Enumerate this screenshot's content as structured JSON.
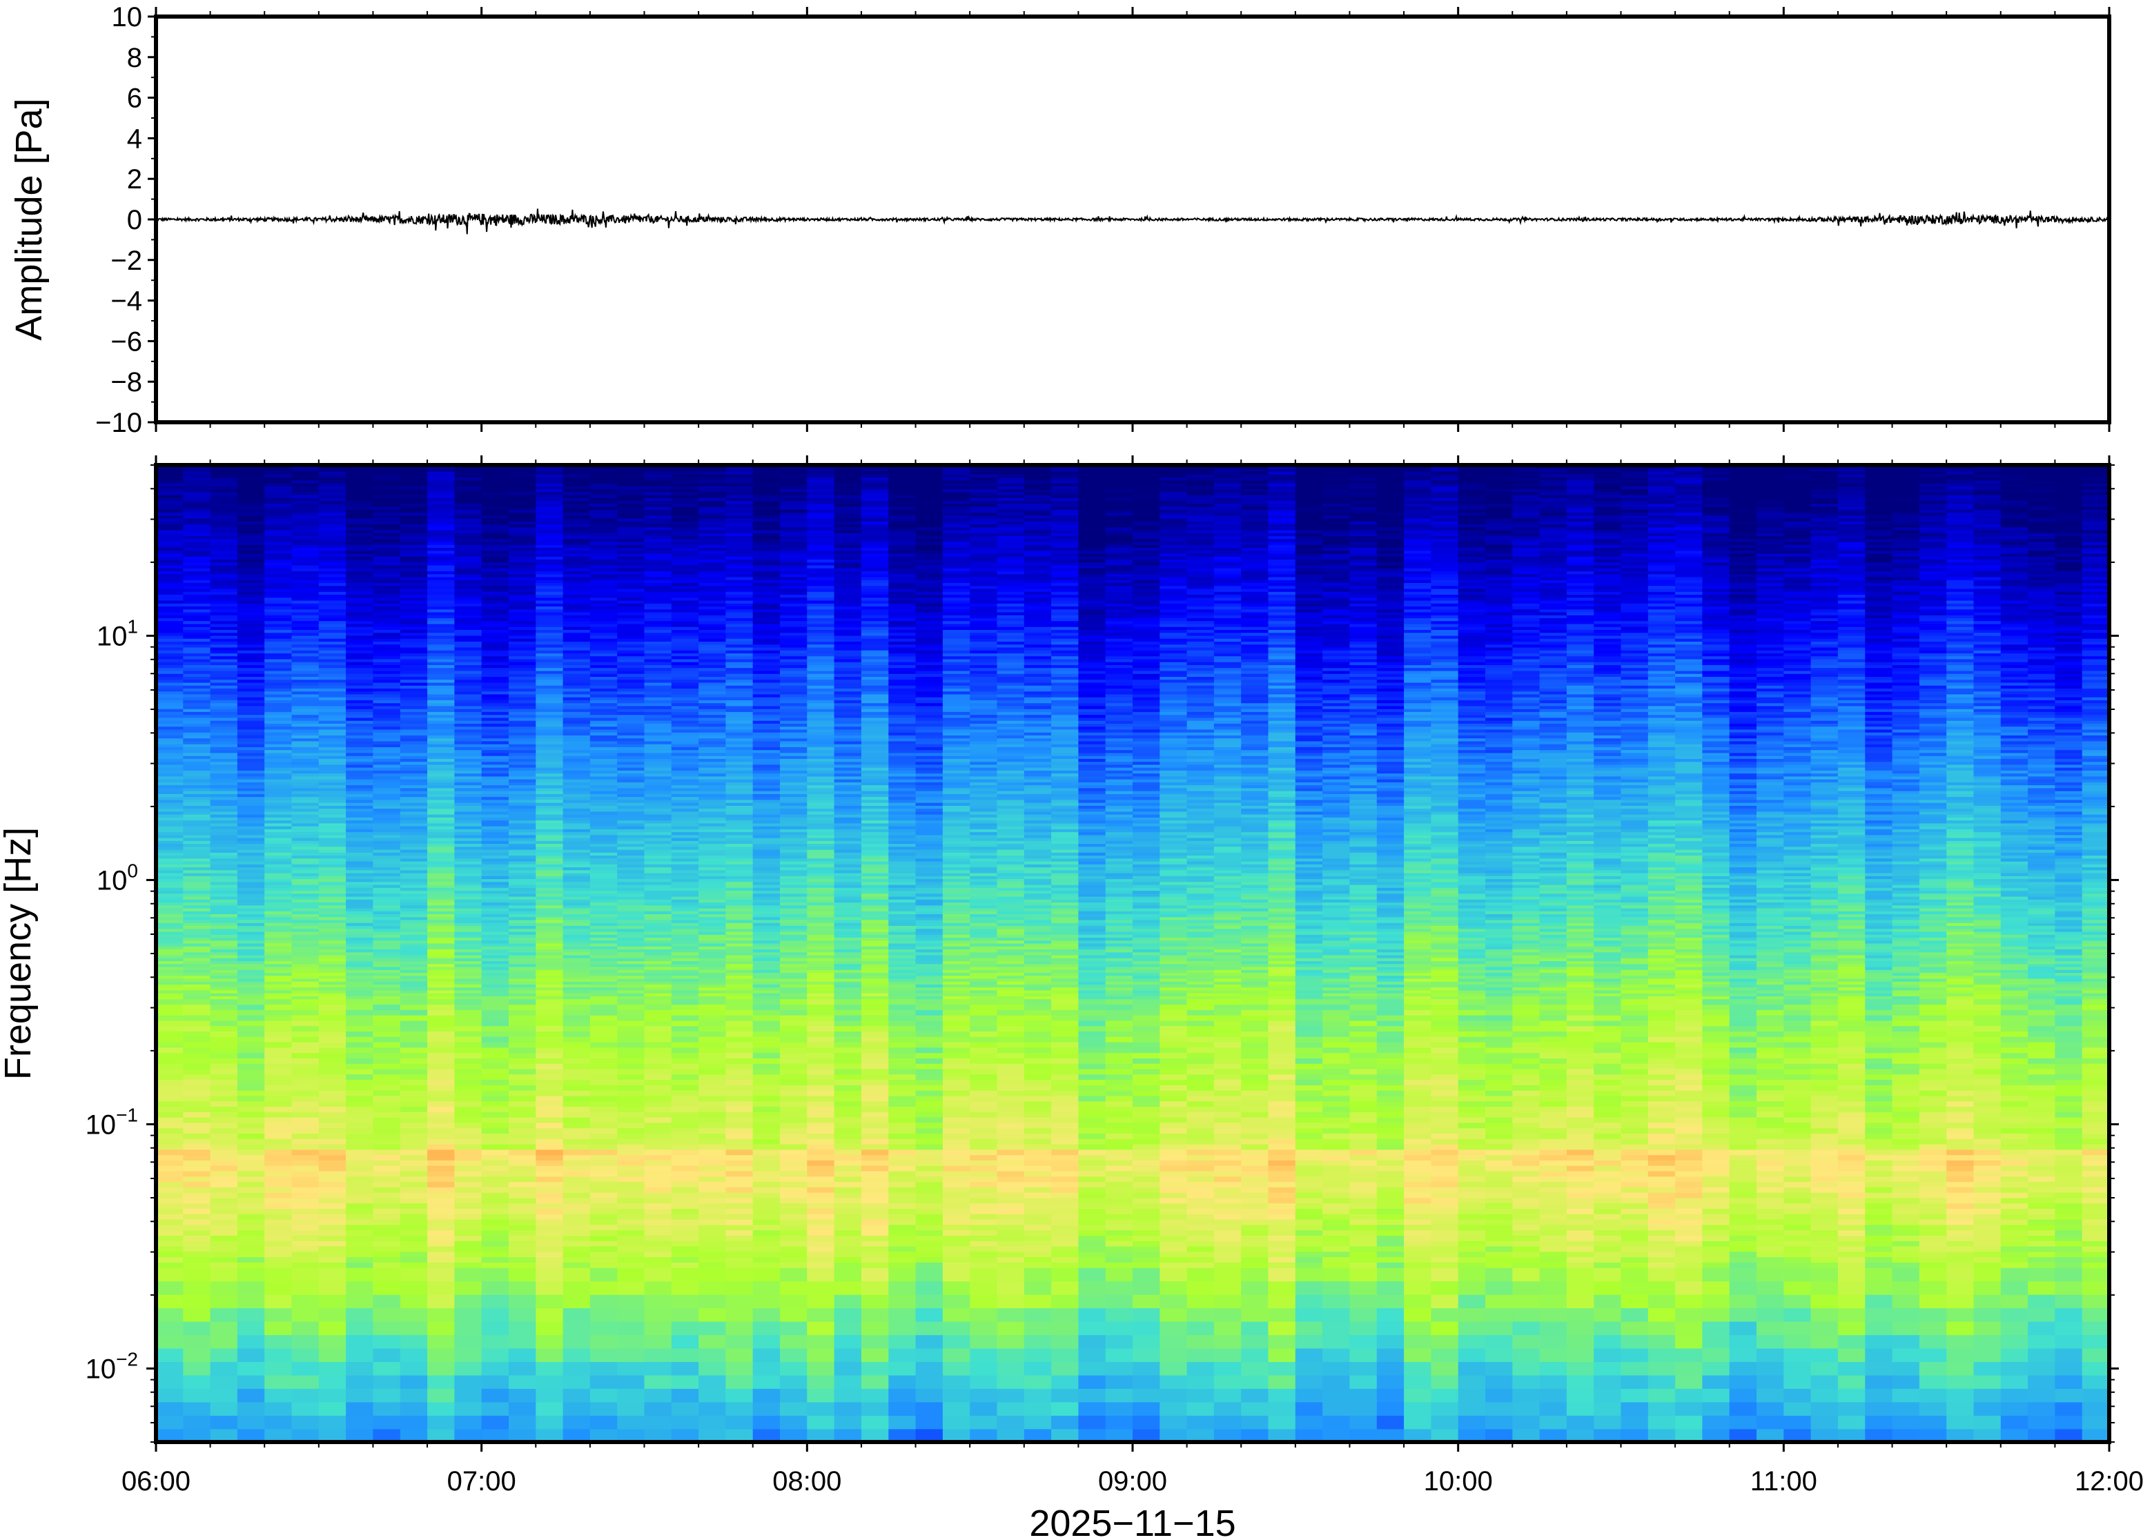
{
  "chart_data": [
    {
      "type": "line",
      "panel": "waveform",
      "title": "",
      "xlabel": "",
      "ylabel": "Amplitude [Pa]",
      "ylim": [
        -10,
        10
      ],
      "yticks": [
        10,
        8,
        6,
        4,
        2,
        0,
        -2,
        -4,
        -6,
        -8,
        -10
      ],
      "ytick_labels": [
        "10",
        "8",
        "6",
        "4",
        "2",
        "0",
        "−2",
        "−4",
        "−6",
        "−8",
        "−10"
      ],
      "xlim": [
        "06:00",
        "12:00"
      ],
      "x": [
        "06:00",
        "06:30",
        "07:00",
        "07:30",
        "08:00",
        "08:30",
        "09:00",
        "09:30",
        "10:00",
        "10:30",
        "11:00",
        "11:30",
        "12:00"
      ],
      "series": [
        {
          "values": [
            0,
            0,
            0,
            0,
            0,
            0,
            0,
            0,
            0,
            0,
            0,
            0,
            0
          ],
          "envelope_max_abs": [
            0.1,
            0.15,
            0.5,
            0.3,
            0.1,
            0.1,
            0.1,
            0.1,
            0.1,
            0.1,
            0.1,
            0.4,
            0.15
          ]
        }
      ],
      "color": "#000000",
      "grid": false
    },
    {
      "type": "heatmap",
      "panel": "spectrogram",
      "title": "",
      "xlabel": "2025−11−15",
      "ylabel": "Frequency [Hz]",
      "xlim": [
        "06:00",
        "12:00"
      ],
      "x_ticks": [
        "06:00",
        "07:00",
        "08:00",
        "09:00",
        "10:00",
        "11:00",
        "12:00"
      ],
      "y_scale": "log",
      "ylim": [
        0.005,
        50
      ],
      "y_ticks": [
        0.01,
        0.1,
        1,
        10
      ],
      "y_tick_labels": [
        {
          "base": "10",
          "exp": "−2"
        },
        {
          "base": "10",
          "exp": "−1"
        },
        {
          "base": "10",
          "exp": "0"
        },
        {
          "base": "10",
          "exp": "1"
        }
      ],
      "colormap": [
        "#00007f",
        "#0000ff",
        "#1e90ff",
        "#40e0d0",
        "#adff2f",
        "#ffe87c",
        "#ffa040"
      ],
      "grid": false
    }
  ]
}
